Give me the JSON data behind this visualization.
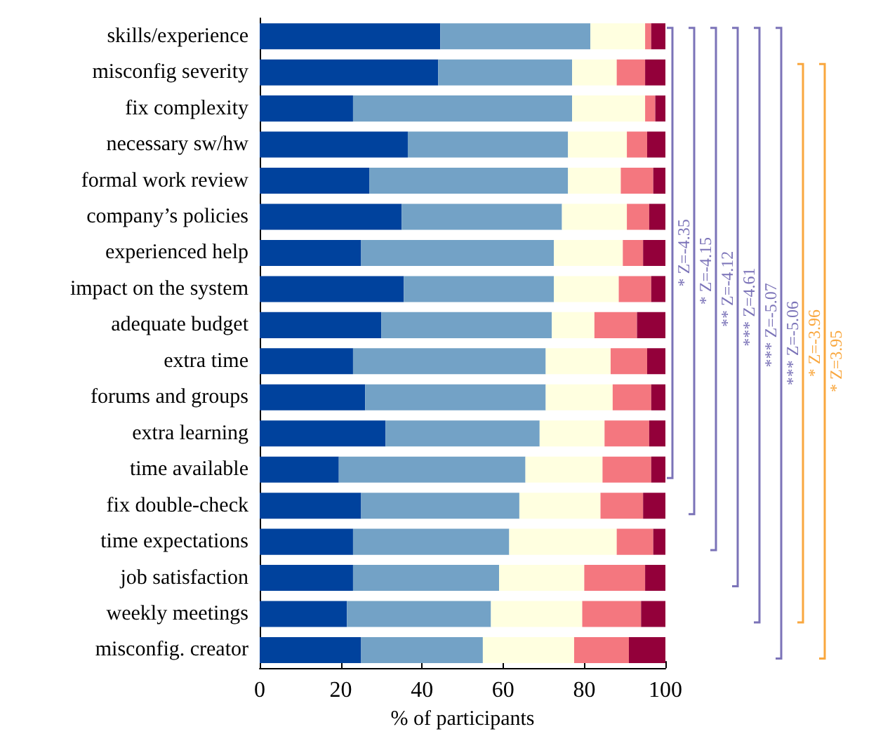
{
  "chart_data": {
    "type": "bar",
    "orientation": "horizontal",
    "stacked": true,
    "xlabel": "% of participants",
    "categories": [
      "skills/experience",
      "misconfig severity",
      "fix complexity",
      "necessary sw/hw",
      "formal work review",
      "company’s policies",
      "experienced help",
      "impact on the system",
      "adequate budget",
      "extra time",
      "forums and groups",
      "extra learning",
      "time available",
      "fix double-check",
      "time expectations",
      "job satisfaction",
      "weekly meetings",
      "misconfig. creator"
    ],
    "series": [
      {
        "color": "#00429d",
        "values": [
          44.5,
          44,
          23,
          36.5,
          27,
          35,
          25,
          35.5,
          30,
          23,
          26,
          31,
          19.5,
          25,
          23,
          23,
          21.5,
          25
        ]
      },
      {
        "color": "#73a2c6",
        "values": [
          37,
          33,
          54,
          39.5,
          49,
          39.5,
          47.5,
          37,
          42,
          47.5,
          44.5,
          38,
          46,
          39,
          38.5,
          36,
          35.5,
          30
        ]
      },
      {
        "color": "#ffffe0",
        "values": [
          13.5,
          11,
          18,
          14.5,
          13,
          16,
          17,
          16,
          10.5,
          16,
          16.5,
          16,
          19,
          20,
          26.5,
          21,
          22.5,
          22.5
        ]
      },
      {
        "color": "#f4777f",
        "values": [
          1.5,
          7,
          2.5,
          5,
          8,
          5.5,
          5,
          8,
          10.5,
          9,
          9.5,
          11,
          12,
          10.5,
          9,
          15,
          14.5,
          13.5
        ]
      },
      {
        "color": "#93003a",
        "values": [
          3.5,
          5,
          2.5,
          4.5,
          3,
          4,
          5.5,
          3.5,
          7,
          4.5,
          3.5,
          4,
          3.5,
          5.5,
          3,
          5,
          6,
          9
        ]
      }
    ],
    "xlim": [
      0,
      100
    ],
    "xticks": [
      0,
      20,
      40,
      60,
      80,
      100
    ],
    "grid": false,
    "annotations": [
      "* Z=-4.35",
      "* Z=-4.15",
      "** Z=-4.12",
      "*** Z=4.61",
      "*** Z=-5.07",
      "*** Z=-5.06",
      "* Z=-3.96",
      "* Z=3.95"
    ]
  }
}
